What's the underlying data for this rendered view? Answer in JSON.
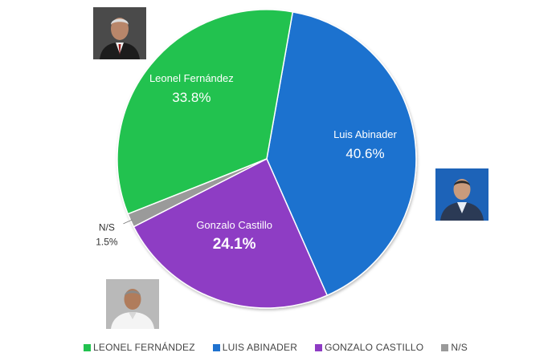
{
  "chart_data": {
    "type": "pie",
    "categories": [
      "Luis Abinader",
      "Gonzalo Castillo",
      "N/S",
      "Leonel Fernández"
    ],
    "values": [
      40.6,
      24.1,
      1.5,
      33.8
    ],
    "value_labels": [
      "40.6%",
      "24.1%",
      "1.5%",
      "33.8%"
    ],
    "colors": [
      "#1f72cf",
      "#8e3cc4",
      "#9a9a9a",
      "#22c24f"
    ],
    "legend": {
      "placement": "bottom",
      "entries": [
        {
          "label": "LEONEL FERNÁNDEZ",
          "color": "#22c24f"
        },
        {
          "label": "LUIS ABINADER",
          "color": "#1f72cf"
        },
        {
          "label": "GONZALO CASTILLO",
          "color": "#8e3cc4"
        },
        {
          "label": "N/S",
          "color": "#9a9a9a"
        }
      ]
    }
  },
  "photos": [
    {
      "name": "leonel-fernandez-photo"
    },
    {
      "name": "luis-abinader-photo"
    },
    {
      "name": "gonzalo-castillo-photo"
    }
  ]
}
